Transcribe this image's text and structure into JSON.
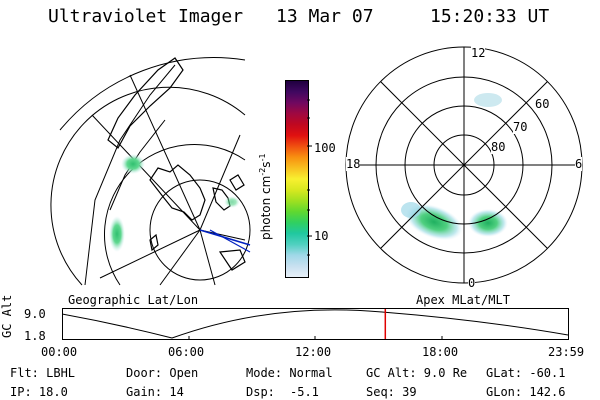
{
  "header": {
    "instrument": "Ultraviolet Imager",
    "date": "13 Mar 07",
    "time": "15:20:33 UT"
  },
  "colorbar": {
    "unit_label": "photon cm",
    "unit_exp1": "-2",
    "unit_mid": "s",
    "unit_exp2": "-1",
    "tick_100": "100",
    "tick_10": "10",
    "colors": [
      "#e8f0f8",
      "#c8e0f0",
      "#a0d8e8",
      "#50d0c0",
      "#20c8a0",
      "#30d060",
      "#60d830",
      "#a0e020",
      "#d8e820",
      "#f8f030",
      "#f8c020",
      "#f89010",
      "#f05010",
      "#e01010",
      "#c00820",
      "#a00840",
      "#700860",
      "#400860",
      "#200040"
    ]
  },
  "geo_panel": {
    "label": "Geographic Lat/Lon"
  },
  "polar_panel": {
    "label": "Apex MLat/MLT",
    "mlt_12": "12",
    "mlt_18": "18",
    "mlt_6": "6",
    "mlt_0": "0",
    "mlat_60": "60",
    "mlat_70": "70",
    "mlat_80": "80"
  },
  "altitude_plot": {
    "ylabel": "GC Alt",
    "ymax": "9.0",
    "ymin": "1.8",
    "xticks": [
      "00:00",
      "06:00",
      "12:00",
      "18:00",
      "23:59"
    ],
    "current_time_fraction": 0.639,
    "marker_color": "#e00000"
  },
  "info": {
    "flt": "Flt: LBHL",
    "ip": "IP: 18.0",
    "door": "Door: Open",
    "gain": "Gain: 14",
    "mode": "Mode: Normal",
    "dsp_label": "Dsp:",
    "dsp_value": "-5.1",
    "gc_alt": "GC Alt: 9.0 Re",
    "seq": "Seq: 39",
    "glat": "GLat: -60.1",
    "glon": "GLon: 142.6"
  }
}
